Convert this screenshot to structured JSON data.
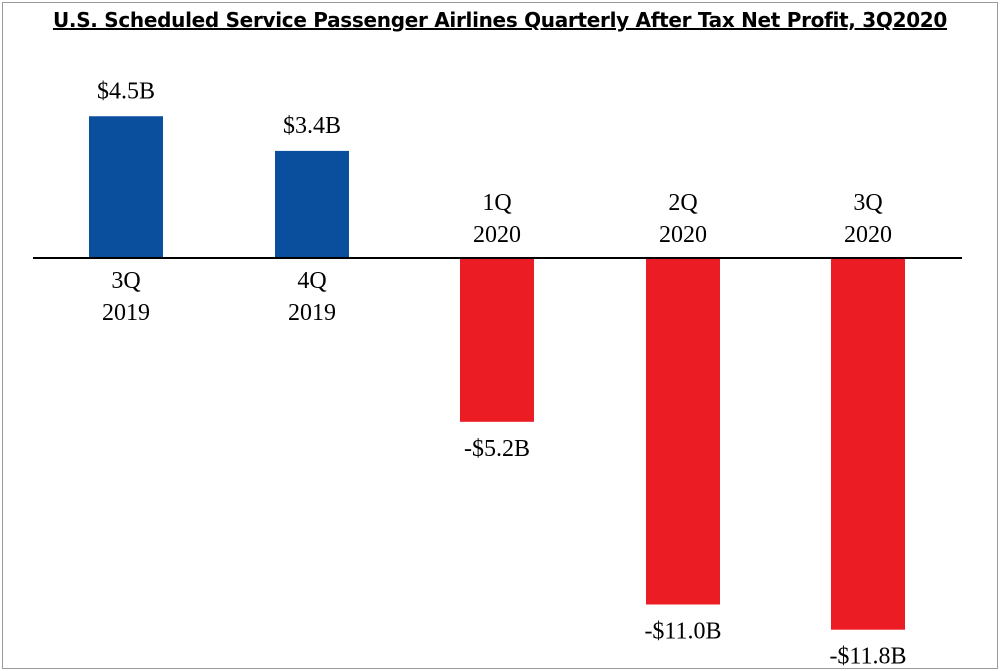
{
  "title": "U.S. Scheduled Service Passenger Airlines Quarterly After Tax Net Profit, 3Q2020",
  "colors": {
    "positive": "#0a4f9e",
    "negative": "#ec1c24",
    "axis": "#000000"
  },
  "chart_data": {
    "type": "bar",
    "title": "U.S. Scheduled Service Passenger Airlines Quarterly After Tax Net Profit, 3Q2020",
    "categories": [
      {
        "line1": "3Q",
        "line2": "2019"
      },
      {
        "line1": "4Q",
        "line2": "2019"
      },
      {
        "line1": "1Q",
        "line2": "2020"
      },
      {
        "line1": "2Q",
        "line2": "2020"
      },
      {
        "line1": "3Q",
        "line2": "2020"
      }
    ],
    "values": [
      4.5,
      3.4,
      -5.2,
      -11.0,
      -11.8
    ],
    "value_labels": [
      "$4.5B",
      "$3.4B",
      "-$5.2B",
      "-$11.0B",
      "-$11.8B"
    ],
    "unit": "billions USD",
    "xlabel": "",
    "ylabel": "",
    "grid": false,
    "legend": "none"
  }
}
